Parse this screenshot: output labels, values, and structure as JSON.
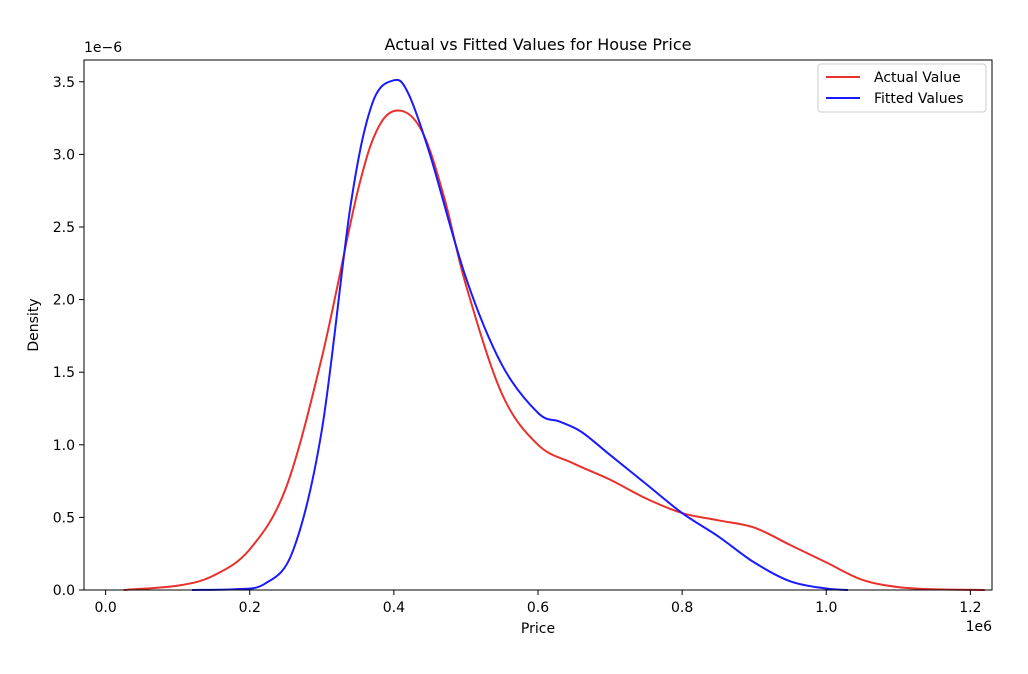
{
  "chart_data": {
    "type": "line",
    "title": "Actual vs Fitted Values for House Price",
    "xlabel": "Price",
    "ylabel": "Density",
    "x_offset_label": "1e6",
    "y_offset_label": "1e−6",
    "xlim": [
      -0.03,
      1.23
    ],
    "ylim": [
      0.0,
      3.65
    ],
    "xticks": [
      0.0,
      0.2,
      0.4,
      0.6,
      0.8,
      1.0,
      1.2
    ],
    "xtick_labels": [
      "0.0",
      "0.2",
      "0.4",
      "0.6",
      "0.8",
      "1.0",
      "1.2"
    ],
    "yticks": [
      0.0,
      0.5,
      1.0,
      1.5,
      2.0,
      2.5,
      3.0,
      3.5
    ],
    "ytick_labels": [
      "0.0",
      "0.5",
      "1.0",
      "1.5",
      "2.0",
      "2.5",
      "3.0",
      "3.5"
    ],
    "grid": false,
    "legend_position": "top-right",
    "series": [
      {
        "name": "Actual Value",
        "color": "#e8312c",
        "x": [
          0.025,
          0.1,
          0.15,
          0.2,
          0.25,
          0.3,
          0.35,
          0.38,
          0.41,
          0.44,
          0.47,
          0.5,
          0.55,
          0.6,
          0.65,
          0.7,
          0.75,
          0.8,
          0.85,
          0.9,
          0.95,
          1.0,
          1.05,
          1.1,
          1.15,
          1.22
        ],
        "y": [
          0.0,
          0.03,
          0.1,
          0.28,
          0.7,
          1.6,
          2.75,
          3.2,
          3.3,
          3.15,
          2.7,
          2.1,
          1.35,
          1.0,
          0.87,
          0.76,
          0.63,
          0.53,
          0.48,
          0.43,
          0.31,
          0.19,
          0.07,
          0.02,
          0.005,
          0.0
        ]
      },
      {
        "name": "Fitted Values",
        "color": "#1a1aff",
        "x": [
          0.12,
          0.18,
          0.22,
          0.26,
          0.3,
          0.34,
          0.37,
          0.4,
          0.42,
          0.45,
          0.5,
          0.55,
          0.6,
          0.63,
          0.66,
          0.7,
          0.75,
          0.8,
          0.85,
          0.9,
          0.95,
          1.0,
          1.03
        ],
        "y": [
          0.0,
          0.005,
          0.04,
          0.27,
          1.1,
          2.65,
          3.35,
          3.51,
          3.42,
          3.0,
          2.15,
          1.55,
          1.22,
          1.16,
          1.09,
          0.93,
          0.73,
          0.53,
          0.37,
          0.19,
          0.06,
          0.01,
          0.0
        ]
      }
    ]
  }
}
